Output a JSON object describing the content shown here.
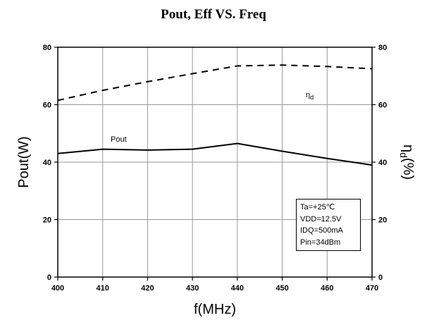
{
  "chart_data": {
    "type": "line",
    "title": "Pout, Eff VS. Freq",
    "xlabel": "f(MHz)",
    "ylabel_left": "Pout(W)",
    "ylabel_right_prefix": "η",
    "ylabel_right_sub": "d",
    "ylabel_right_suffix": "(%)",
    "xlim": [
      400,
      470
    ],
    "ylim_left": [
      0,
      80
    ],
    "ylim_right": [
      0,
      80
    ],
    "x_ticks": [
      400,
      410,
      420,
      430,
      440,
      450,
      460,
      470
    ],
    "y_ticks": [
      0,
      20,
      40,
      60,
      80
    ],
    "grid": true,
    "series": [
      {
        "label": "Pout",
        "axis": "left",
        "style": "solid",
        "x": [
          400,
          410,
          420,
          430,
          440,
          450,
          460,
          470
        ],
        "values": [
          43,
          44.5,
          44.2,
          44.5,
          46.5,
          43.8,
          41.3,
          39
        ]
      },
      {
        "label_prefix": "η",
        "label_sub": "d",
        "axis": "right",
        "style": "dashed",
        "x": [
          400,
          410,
          420,
          430,
          440,
          450,
          460,
          470
        ],
        "values": [
          61.5,
          65,
          68,
          70.8,
          73.5,
          73.8,
          73.3,
          72.5
        ]
      }
    ],
    "conditions": [
      "Ta=+25℃",
      "VDD=12.5V",
      "IDQ=500mA",
      "Pin=34dBm"
    ]
  }
}
